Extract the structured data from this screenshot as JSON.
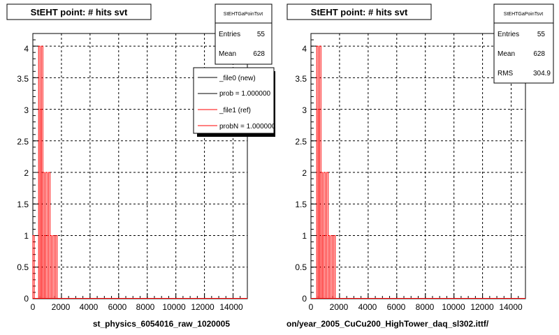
{
  "colors": {
    "background": "#ffffff",
    "frame": "#000000",
    "grid": "#000000",
    "hist_ref": "#ff0000",
    "hist_new": "#000000",
    "legend_shadow": "#000000"
  },
  "bottom_left_text": "",
  "chart_data": [
    {
      "type": "bar",
      "title": "StEHT point: # hits svt",
      "xlabel": "st_physics_6054016_raw_1020005",
      "ylabel": "",
      "xlim": [
        0,
        15000
      ],
      "ylim": [
        0,
        4.2
      ],
      "x_ticks": [
        "0",
        "2000",
        "4000",
        "6000",
        "8000",
        "10000",
        "12000",
        "14000"
      ],
      "y_ticks": [
        "0",
        "0.5",
        "1",
        "1.5",
        "2",
        "2.5",
        "3",
        "3.5",
        "4"
      ],
      "grid": true,
      "stats": {
        "title": "StEHTGaPoinTsvt",
        "rows": [
          {
            "label": "Entries",
            "value": "55"
          },
          {
            "label": "Mean",
            "value": "628"
          }
        ]
      },
      "legend": {
        "placement": "top-right",
        "entries": [
          {
            "label": "_file0 (new)",
            "color": "#000000"
          },
          {
            "label": "prob = 1.000000",
            "color": "#000000"
          },
          {
            "label": "_file1 (ref)",
            "color": "#ff0000"
          },
          {
            "label": "probN = 1.000000",
            "color": "#ff0000"
          }
        ]
      },
      "series": [
        {
          "name": "_file1 (ref)",
          "color": "#ff0000",
          "bin_width": 100,
          "bins": [
            {
              "x": 0,
              "y": 1
            },
            {
              "x": 100,
              "y": 0
            },
            {
              "x": 200,
              "y": 0
            },
            {
              "x": 300,
              "y": 0
            },
            {
              "x": 400,
              "y": 4
            },
            {
              "x": 500,
              "y": 3
            },
            {
              "x": 600,
              "y": 4
            },
            {
              "x": 700,
              "y": 2
            },
            {
              "x": 800,
              "y": 1
            },
            {
              "x": 900,
              "y": 2
            },
            {
              "x": 1000,
              "y": 1
            },
            {
              "x": 1100,
              "y": 2
            },
            {
              "x": 1200,
              "y": 1
            },
            {
              "x": 1300,
              "y": 0
            },
            {
              "x": 1400,
              "y": 1
            },
            {
              "x": 1500,
              "y": 0
            },
            {
              "x": 1600,
              "y": 1
            }
          ]
        }
      ]
    },
    {
      "type": "bar",
      "title": "StEHT point: # hits svt",
      "xlabel": "on/year_2005_CuCu200_HighTower_daq_sl302.ittf/",
      "ylabel": "",
      "xlim": [
        0,
        15000
      ],
      "ylim": [
        0,
        4.2
      ],
      "x_ticks": [
        "0",
        "2000",
        "4000",
        "6000",
        "8000",
        "10000",
        "12000",
        "14000"
      ],
      "y_ticks": [
        "0",
        "0.5",
        "1",
        "1.5",
        "2",
        "2.5",
        "3",
        "3.5",
        "4"
      ],
      "grid": true,
      "stats": {
        "title": "StEHTGaPoinTsvt",
        "rows": [
          {
            "label": "Entries",
            "value": "55"
          },
          {
            "label": "Mean",
            "value": "628"
          },
          {
            "label": "RMS",
            "value": "304.9"
          }
        ]
      },
      "series": [
        {
          "name": "",
          "color": "#ff0000",
          "bin_width": 100,
          "bins": [
            {
              "x": 0,
              "y": 0
            },
            {
              "x": 100,
              "y": 0
            },
            {
              "x": 200,
              "y": 0
            },
            {
              "x": 300,
              "y": 0
            },
            {
              "x": 400,
              "y": 4
            },
            {
              "x": 500,
              "y": 3
            },
            {
              "x": 600,
              "y": 4
            },
            {
              "x": 700,
              "y": 2
            },
            {
              "x": 800,
              "y": 1
            },
            {
              "x": 900,
              "y": 2
            },
            {
              "x": 1000,
              "y": 1
            },
            {
              "x": 1100,
              "y": 2
            },
            {
              "x": 1200,
              "y": 1
            },
            {
              "x": 1300,
              "y": 0
            },
            {
              "x": 1400,
              "y": 1
            },
            {
              "x": 1500,
              "y": 0
            },
            {
              "x": 1600,
              "y": 1
            }
          ]
        }
      ]
    }
  ]
}
